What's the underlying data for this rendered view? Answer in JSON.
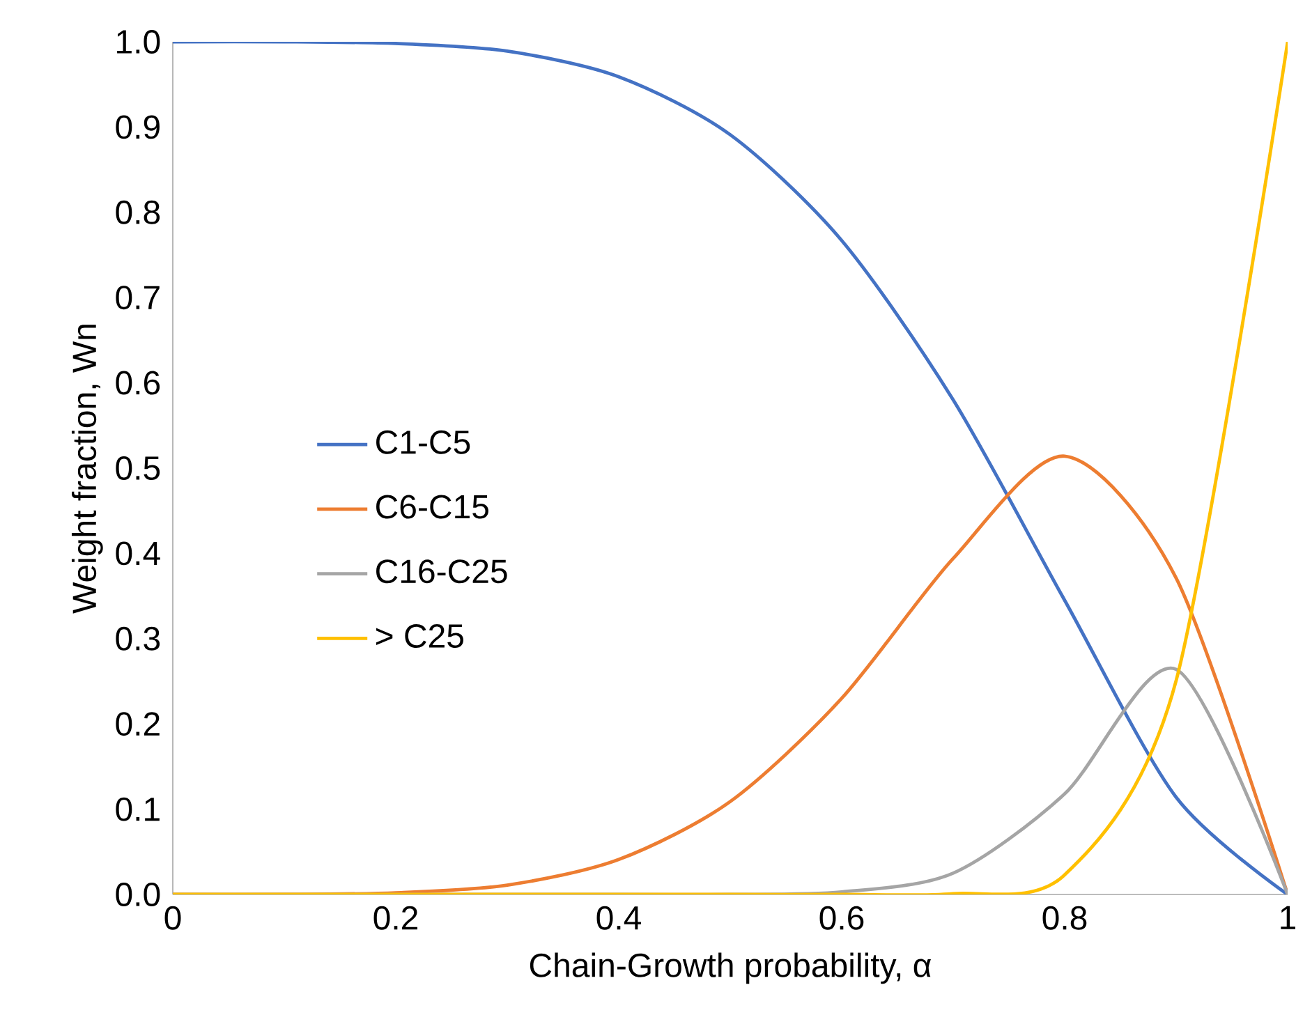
{
  "chart_data": {
    "type": "line",
    "xlabel": "Chain-Growth probability, α",
    "ylabel": "Weight fraction, Wn",
    "x": [
      0,
      0.1,
      0.2,
      0.3,
      0.4,
      0.5,
      0.6,
      0.7,
      0.8,
      0.9,
      1
    ],
    "series": [
      {
        "name": "C1-C5",
        "color": "#4472c4",
        "values": [
          1.0,
          1.0,
          0.998,
          0.989,
          0.959,
          0.891,
          0.767,
          0.58,
          0.345,
          0.114,
          0
        ]
      },
      {
        "name": "C6-C15",
        "color": "#ed7d31",
        "values": [
          0,
          0,
          0.002,
          0.011,
          0.041,
          0.109,
          0.23,
          0.394,
          0.514,
          0.371,
          0
        ]
      },
      {
        "name": "C16-C25",
        "color": "#a5a5a5",
        "values": [
          0,
          0,
          0,
          0,
          0,
          0,
          0.003,
          0.025,
          0.118,
          0.264,
          0
        ]
      },
      {
        "name": "> C25",
        "color": "#ffc000",
        "values": [
          0,
          0,
          0,
          0,
          0,
          0,
          0,
          0.001,
          0.023,
          0.251,
          1.0
        ]
      }
    ],
    "xlim": [
      0,
      1
    ],
    "ylim": [
      0,
      1
    ],
    "xticks": [
      0,
      0.2,
      0.4,
      0.6,
      0.8,
      1
    ],
    "yticks": [
      {
        "value": 0,
        "label": "0.0"
      },
      0.1,
      0.2,
      0.3,
      0.4,
      0.5,
      0.6,
      0.7,
      0.8,
      0.9,
      {
        "value": 1,
        "label": "1.0"
      }
    ],
    "legend": "left",
    "grid": false,
    "marker": "none",
    "line_style": "solid"
  }
}
